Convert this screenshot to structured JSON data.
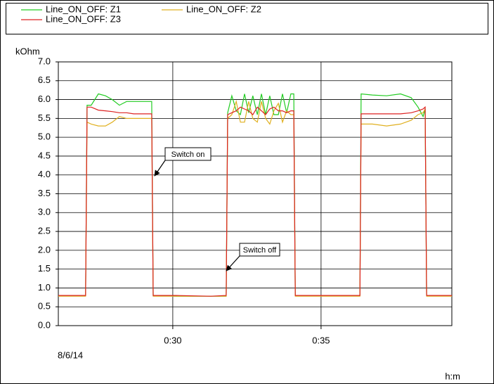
{
  "chart_data": {
    "type": "line",
    "y_axis_label": "kOhm",
    "x_axis_label": "h:m",
    "date_label": "8/6/14",
    "x": [
      26.14,
      27.06,
      27.11,
      27.25,
      27.49,
      27.73,
      27.96,
      28.2,
      28.44,
      28.68,
      28.91,
      29.15,
      29.29,
      29.34,
      30.1,
      31.28,
      31.8,
      31.85,
      31.99,
      32.14,
      32.28,
      32.42,
      32.56,
      32.7,
      32.85,
      32.99,
      33.13,
      33.27,
      33.41,
      33.56,
      33.7,
      33.84,
      33.98,
      34.08,
      34.13,
      35.31,
      36.31,
      36.35,
      36.73,
      37.21,
      37.68,
      38.04,
      38.27,
      38.44,
      38.51,
      38.56,
      39.41
    ],
    "series": [
      {
        "name": "Line_ON_OFF: Z1",
        "color": "#22cc22",
        "values": [
          0.8,
          0.8,
          5.85,
          5.85,
          6.15,
          6.1,
          6.0,
          5.85,
          5.95,
          5.95,
          5.95,
          5.95,
          5.95,
          0.8,
          0.78,
          0.78,
          0.78,
          5.65,
          6.1,
          5.7,
          5.6,
          6.15,
          5.65,
          6.1,
          5.6,
          6.15,
          5.6,
          6.1,
          5.6,
          5.6,
          6.15,
          5.65,
          6.15,
          6.15,
          0.8,
          0.8,
          0.8,
          6.15,
          6.12,
          6.1,
          6.15,
          6.05,
          5.8,
          5.55,
          5.75,
          0.8,
          0.8
        ]
      },
      {
        "name": "Line_ON_OFF: Z2",
        "color": "#e0b020",
        "values": [
          0.78,
          0.78,
          5.4,
          5.35,
          5.3,
          5.3,
          5.4,
          5.55,
          5.5,
          5.5,
          5.5,
          5.5,
          5.5,
          0.78,
          0.78,
          0.78,
          0.78,
          5.5,
          5.6,
          5.95,
          5.4,
          5.4,
          5.95,
          5.5,
          5.4,
          5.95,
          5.5,
          5.35,
          5.7,
          5.9,
          5.4,
          5.7,
          5.6,
          5.6,
          0.78,
          0.78,
          0.78,
          5.35,
          5.35,
          5.3,
          5.35,
          5.45,
          5.6,
          5.65,
          5.75,
          0.78,
          0.78
        ]
      },
      {
        "name": "Line_ON_OFF: Z3",
        "color": "#dd2222",
        "values": [
          0.8,
          0.8,
          5.8,
          5.8,
          5.72,
          5.7,
          5.68,
          5.65,
          5.65,
          5.62,
          5.62,
          5.62,
          5.62,
          0.8,
          0.8,
          0.78,
          0.8,
          5.6,
          5.65,
          5.7,
          5.8,
          5.75,
          5.7,
          5.6,
          5.8,
          5.7,
          5.6,
          5.75,
          5.8,
          5.7,
          5.7,
          5.65,
          5.7,
          5.7,
          0.8,
          0.8,
          0.8,
          5.62,
          5.62,
          5.62,
          5.62,
          5.65,
          5.7,
          5.75,
          5.8,
          0.8,
          0.8
        ]
      }
    ],
    "xlim": [
      26.14,
      39.41
    ],
    "xticks": [
      {
        "value": 30,
        "label": "0:30"
      },
      {
        "value": 35,
        "label": "0:35"
      }
    ],
    "ylim": [
      0,
      7
    ],
    "yticks": [
      {
        "value": 0,
        "label": "0.0"
      },
      {
        "value": 0.5,
        "label": "0.5"
      },
      {
        "value": 1,
        "label": "1.0"
      },
      {
        "value": 1.5,
        "label": "1.5"
      },
      {
        "value": 2,
        "label": "2.0"
      },
      {
        "value": 2.5,
        "label": "2.5"
      },
      {
        "value": 3,
        "label": "3.0"
      },
      {
        "value": 3.5,
        "label": "3.5"
      },
      {
        "value": 4,
        "label": "4.0"
      },
      {
        "value": 4.5,
        "label": "4.5"
      },
      {
        "value": 5,
        "label": "5.0"
      },
      {
        "value": 5.5,
        "label": "5.5"
      },
      {
        "value": 6,
        "label": "6.0"
      },
      {
        "value": 6.5,
        "label": "6.5"
      },
      {
        "value": 7,
        "label": "7.0"
      }
    ],
    "grid": true,
    "annotations": [
      "Switch on",
      "Switch off"
    ]
  }
}
